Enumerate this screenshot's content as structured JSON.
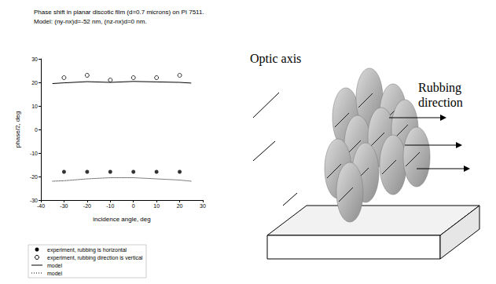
{
  "chart_data": {
    "type": "scatter",
    "title": "Phase shift in planar discotic film (d=0.7 microns) on PI 7511.",
    "subtitle": "Model: (ny-nx)d=-52 nm, (nz-nx)d=0 nm.",
    "x_label": "incidence angle, deg",
    "y_label": "phase/2, deg",
    "xlim": [
      -40,
      30
    ],
    "xticks": [
      -40,
      -30,
      -20,
      -10,
      0,
      10,
      20,
      30
    ],
    "ylim": [
      -30,
      30
    ],
    "yticks": [
      -30,
      -20,
      -10,
      0,
      10,
      20,
      30
    ],
    "grid": false,
    "legend": "lower left",
    "annotations": [
      "Optic axis",
      "Rubbing direction"
    ],
    "series": [
      {
        "name": "experiment, rubbing is horizontal",
        "type": "scatter",
        "marker": "circle",
        "color": "#000000",
        "x": [
          -30,
          -20,
          -10,
          0,
          10,
          20
        ],
        "values": [
          -18,
          -18,
          -18,
          -18,
          -18,
          -18
        ]
      },
      {
        "name": "experiment, rubbing direction is vertical",
        "type": "scatter",
        "marker": "open circle",
        "color": "#000000",
        "x": [
          -30,
          -20,
          -10,
          0,
          10,
          20
        ],
        "values": [
          22,
          23,
          21,
          22,
          22,
          23
        ]
      },
      {
        "name": "model",
        "type": "line",
        "line_style": "solid",
        "color": "#000000",
        "x": [
          -35,
          -30,
          -20,
          -10,
          0,
          10,
          20,
          25
        ],
        "values": [
          19.5,
          19.8,
          20.3,
          20.0,
          20.4,
          20.2,
          20.0,
          19.7
        ]
      },
      {
        "name": "model",
        "type": "line",
        "line_style": "dotted",
        "color": "#000000",
        "x": [
          -35,
          -30,
          -20,
          -10,
          0,
          10,
          20,
          25
        ],
        "values": [
          -22,
          -21.8,
          -21,
          -20.5,
          -20.5,
          -21,
          -21.5,
          -22
        ]
      }
    ]
  }
}
